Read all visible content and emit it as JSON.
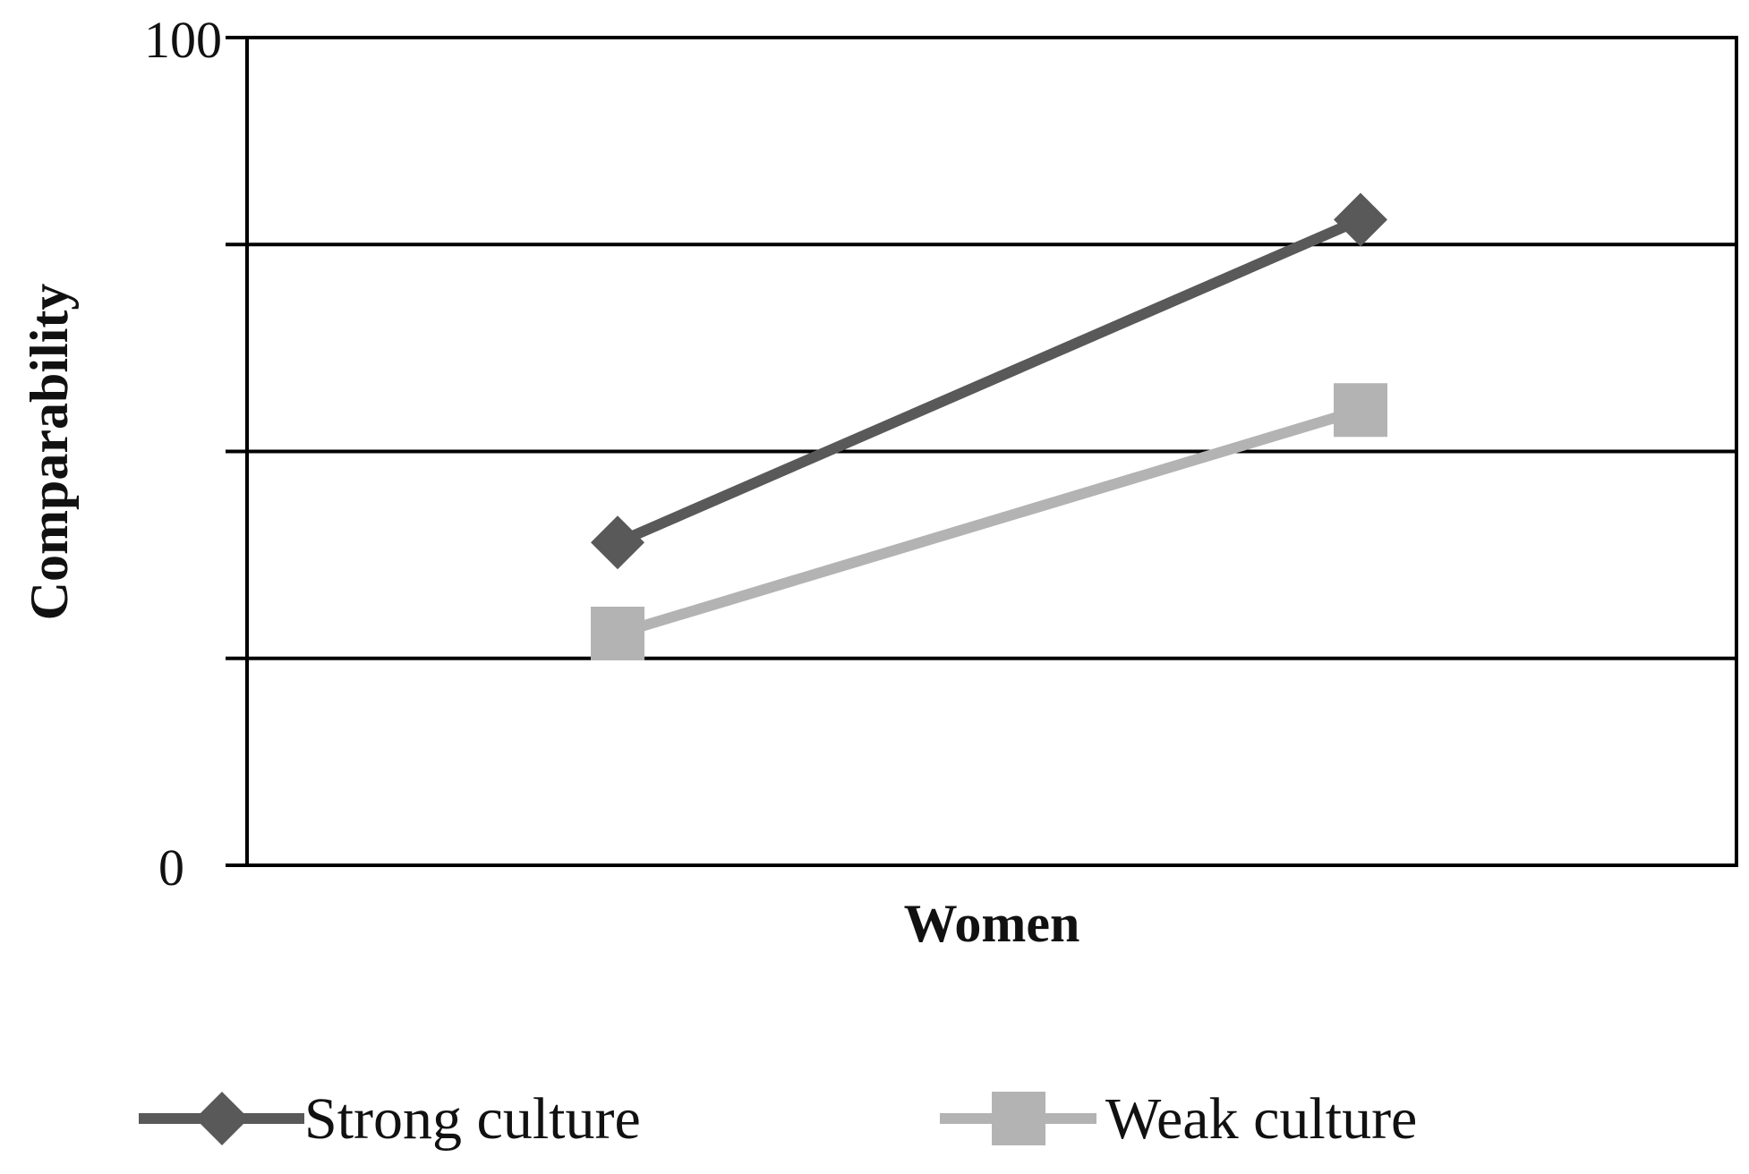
{
  "chart_data": {
    "type": "line",
    "title": "",
    "xlabel": "Women",
    "ylabel": "Comparability",
    "ylim": [
      0,
      100
    ],
    "yticks_labeled": [
      0,
      100
    ],
    "gridlines": [
      25,
      50,
      75
    ],
    "grid": true,
    "legend_placement": "bottom",
    "x": [
      1,
      2
    ],
    "series": [
      {
        "name": "Strong culture",
        "marker": "diamond",
        "color": "#595959",
        "values": [
          39,
          78
        ]
      },
      {
        "name": "Weak culture",
        "marker": "square",
        "color": "#b3b3b3",
        "values": [
          28,
          55
        ]
      }
    ]
  },
  "labels": {
    "y_max": "100",
    "y_min": "0"
  }
}
